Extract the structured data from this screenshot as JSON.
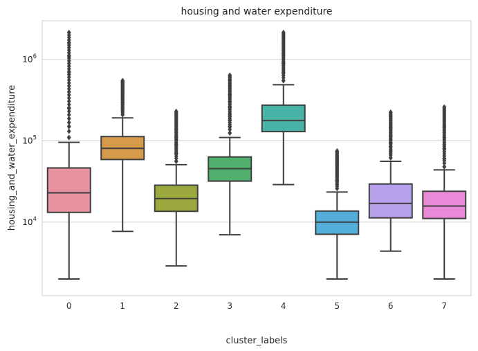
{
  "chart_data": {
    "type": "box",
    "title": "housing and water expenditure",
    "xlabel": "cluster_labels",
    "ylabel": "housing_and_water_expenditure",
    "yscale": "log",
    "ylim": [
      1250,
      3000000
    ],
    "yticks": [
      {
        "value": 10000,
        "base": "10",
        "exp": "4"
      },
      {
        "value": 100000,
        "base": "10",
        "exp": "5"
      },
      {
        "value": 1000000,
        "base": "10",
        "exp": "6"
      }
    ],
    "grid": "horizontal",
    "categories": [
      "0",
      "1",
      "2",
      "3",
      "4",
      "5",
      "6",
      "7"
    ],
    "boxes": [
      {
        "label": "0",
        "color": "#e8919f",
        "whisker_low": 2000,
        "q1": 13200,
        "median": 23000,
        "q3": 46500,
        "whisker_high": 96000,
        "outliers": [
          110000,
          150000,
          250000,
          400000,
          700000,
          1100000,
          1600000,
          2150000
        ]
      },
      {
        "label": "1",
        "color": "#d59a4a",
        "whisker_low": 7700,
        "q1": 59000,
        "median": 81000,
        "q3": 113000,
        "whisker_high": 192000,
        "outliers": [
          210000,
          250000,
          300000,
          350000,
          420000,
          480000,
          550000
        ]
      },
      {
        "label": "2",
        "color": "#9aa83e",
        "whisker_low": 2900,
        "q1": 13600,
        "median": 19500,
        "q3": 28500,
        "whisker_high": 51000,
        "outliers": [
          56000,
          70000,
          90000,
          110000,
          140000,
          175000,
          230000
        ]
      },
      {
        "label": "3",
        "color": "#4fb06d",
        "whisker_low": 7000,
        "q1": 32000,
        "median": 45500,
        "q3": 63500,
        "whisker_high": 110000,
        "outliers": [
          125000,
          150000,
          180000,
          210000,
          260000,
          370000,
          640000
        ]
      },
      {
        "label": "4",
        "color": "#49b2a6",
        "whisker_low": 29000,
        "q1": 130000,
        "median": 178000,
        "q3": 275000,
        "whisker_high": 490000,
        "outliers": [
          550000,
          700000,
          900000,
          1200000,
          1600000,
          2150000
        ]
      },
      {
        "label": "5",
        "color": "#53aed9",
        "whisker_low": 2000,
        "q1": 7100,
        "median": 10000,
        "q3": 13700,
        "whisker_high": 23500,
        "outliers": [
          26000,
          32000,
          40000,
          50000,
          62000,
          75000
        ]
      },
      {
        "label": "6",
        "color": "#b9a0ec",
        "whisker_low": 4400,
        "q1": 11300,
        "median": 17000,
        "q3": 29500,
        "whisker_high": 56000,
        "outliers": [
          62000,
          75000,
          95000,
          115000,
          145000,
          225000
        ]
      },
      {
        "label": "7",
        "color": "#e98ad8",
        "whisker_low": 2000,
        "q1": 11100,
        "median": 15800,
        "q3": 24000,
        "whisker_high": 44000,
        "outliers": [
          48000,
          60000,
          80000,
          110000,
          150000,
          195000,
          260000
        ]
      }
    ]
  }
}
